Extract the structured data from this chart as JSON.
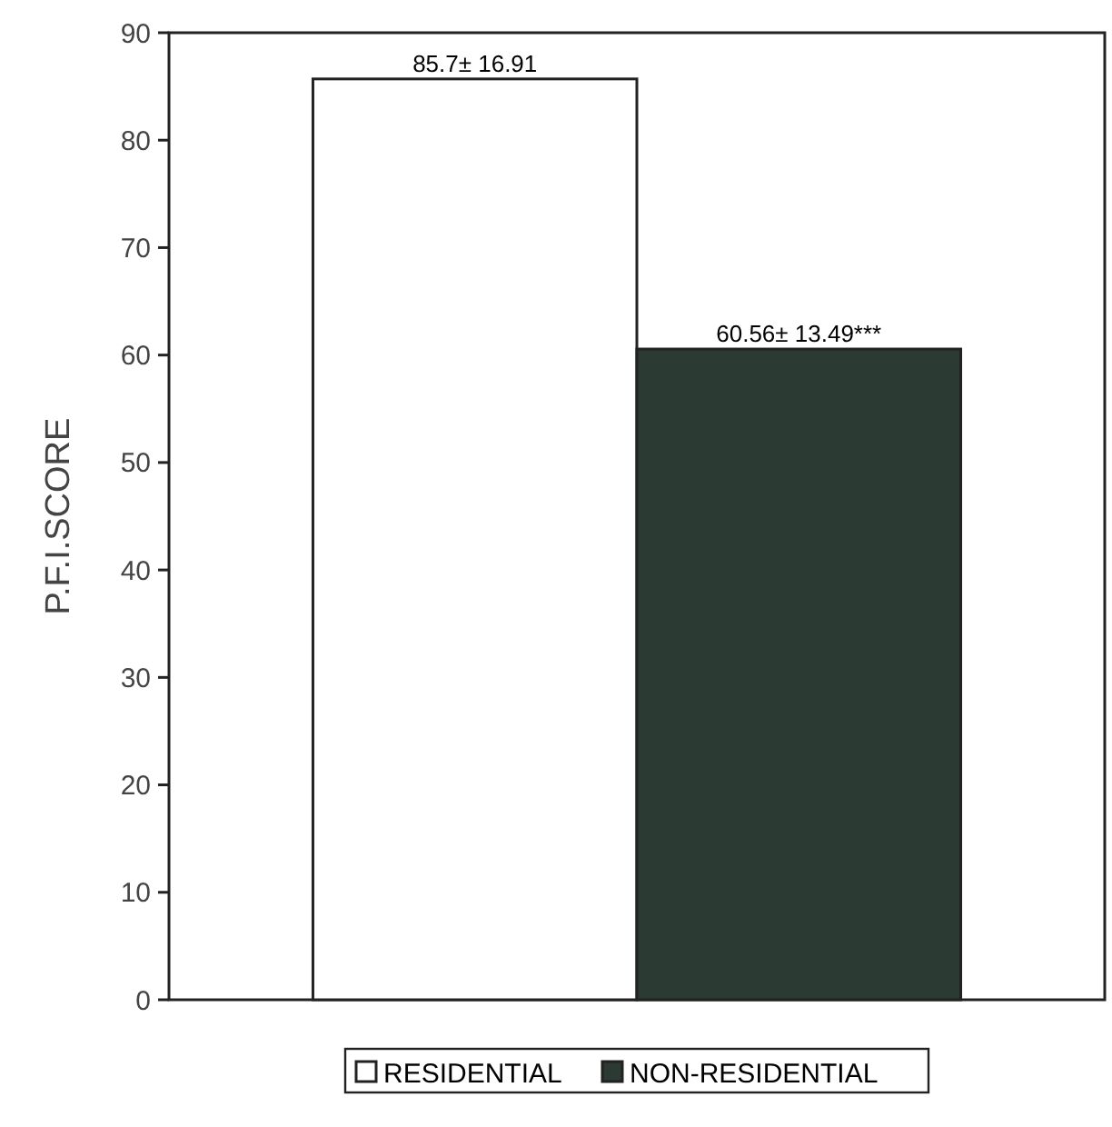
{
  "chart_data": {
    "type": "bar",
    "ylabel": "P.F.I.SCORE",
    "categories": [
      null
    ],
    "series": [
      {
        "name": "RESIDENTIAL",
        "color": "#ffffff",
        "values": [
          85.7
        ],
        "value_labels": [
          "85.7± 16.91"
        ]
      },
      {
        "name": "NON-RESIDENTIAL",
        "color": "#2b3a33",
        "values": [
          60.56
        ],
        "value_labels": [
          "60.56± 13.49***"
        ]
      }
    ],
    "ylim": [
      0,
      90
    ],
    "yticks": [
      0,
      10,
      20,
      30,
      40,
      50,
      60,
      70,
      80,
      90
    ],
    "grid": false,
    "legend": "bottom"
  }
}
